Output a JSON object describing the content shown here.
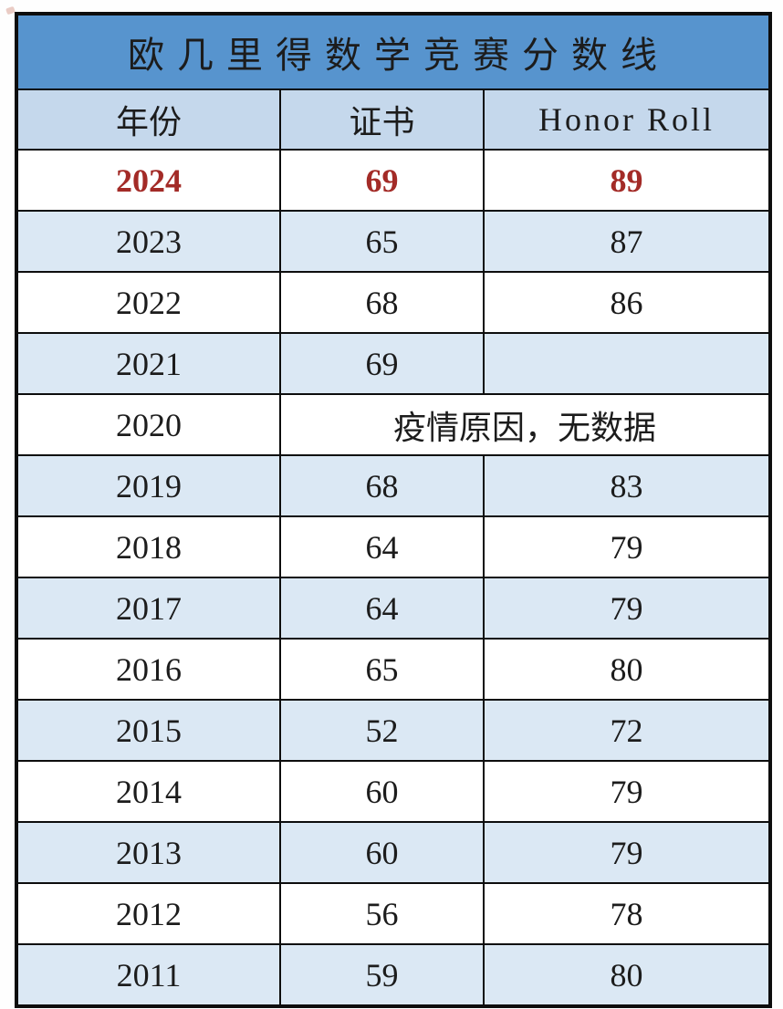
{
  "table": {
    "title": "欧 几 里 得 数 学 竞 赛 分 数 线",
    "columns": {
      "year": "年份",
      "certificate": "证书",
      "honor_roll": "Honor Roll"
    },
    "rows": [
      {
        "year": "2024",
        "certificate": "69",
        "honor_roll": "89",
        "shade": "white",
        "highlight": true
      },
      {
        "year": "2023",
        "certificate": "65",
        "honor_roll": "87",
        "shade": "blue",
        "highlight": false
      },
      {
        "year": "2022",
        "certificate": "68",
        "honor_roll": "86",
        "shade": "white",
        "highlight": false
      },
      {
        "year": "2021",
        "certificate": "69",
        "honor_roll": "",
        "shade": "blue",
        "highlight": false
      },
      {
        "year": "2020",
        "note": "疫情原因，无数据",
        "shade": "white",
        "highlight": false
      },
      {
        "year": "2019",
        "certificate": "68",
        "honor_roll": "83",
        "shade": "blue",
        "highlight": false
      },
      {
        "year": "2018",
        "certificate": "64",
        "honor_roll": "79",
        "shade": "white",
        "highlight": false
      },
      {
        "year": "2017",
        "certificate": "64",
        "honor_roll": "79",
        "shade": "blue",
        "highlight": false
      },
      {
        "year": "2016",
        "certificate": "65",
        "honor_roll": "80",
        "shade": "white",
        "highlight": false
      },
      {
        "year": "2015",
        "certificate": "52",
        "honor_roll": "72",
        "shade": "blue",
        "highlight": false
      },
      {
        "year": "2014",
        "certificate": "60",
        "honor_roll": "79",
        "shade": "white",
        "highlight": false
      },
      {
        "year": "2013",
        "certificate": "60",
        "honor_roll": "79",
        "shade": "blue",
        "highlight": false
      },
      {
        "year": "2012",
        "certificate": "56",
        "honor_roll": "78",
        "shade": "white",
        "highlight": false
      },
      {
        "year": "2011",
        "certificate": "59",
        "honor_roll": "80",
        "shade": "blue",
        "highlight": false
      }
    ]
  },
  "colors": {
    "title_bar_blue": "#5794ce",
    "title_text": "#eef3ee",
    "header_row_blue": "#c5d8ec",
    "alt_row_blue": "#dbe8f4",
    "white_row": "#ffffff",
    "border_black": "#0d0d0d",
    "highlight_red": "#a32b27",
    "body_text": "#1c1c1c"
  }
}
